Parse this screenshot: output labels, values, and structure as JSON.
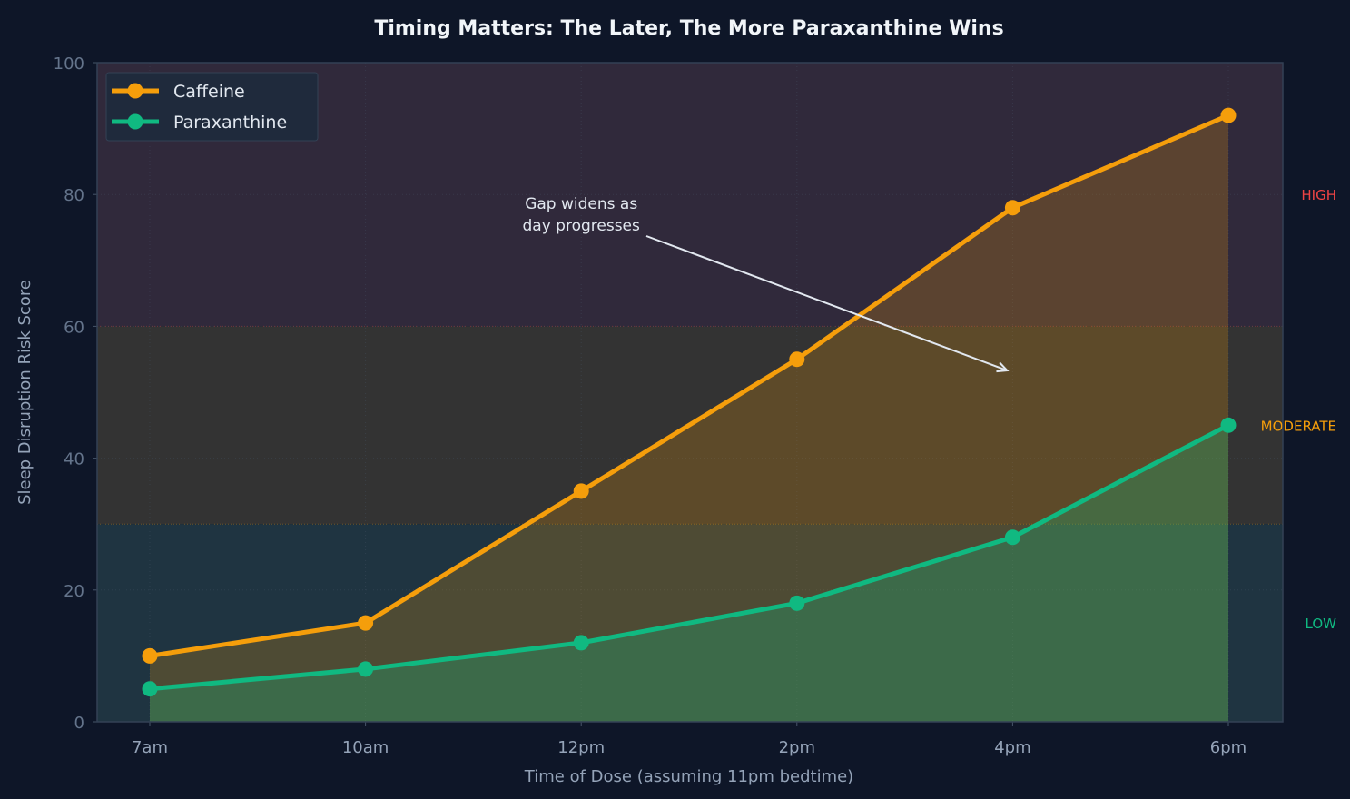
{
  "chart_data": {
    "type": "line",
    "title": "Timing Matters: The Later, The More Paraxanthine Wins",
    "xlabel": "Time of Dose (assuming 11pm bedtime)",
    "ylabel": "Sleep Disruption Risk Score",
    "categories": [
      "7am",
      "10am",
      "12pm",
      "2pm",
      "4pm",
      "6pm"
    ],
    "ylim": [
      0,
      100
    ],
    "yticks": [
      0,
      20,
      40,
      60,
      80,
      100
    ],
    "grid": true,
    "legend": "top-left",
    "series": [
      {
        "name": "Caffeine",
        "values": [
          10,
          15,
          35,
          55,
          78,
          92
        ],
        "color": "#f59e0b"
      },
      {
        "name": "Paraxanthine",
        "values": [
          5,
          8,
          12,
          18,
          28,
          45
        ],
        "color": "#10b981"
      }
    ],
    "zones": [
      {
        "label": "LOW",
        "from": 0,
        "to": 30,
        "label_y": 15,
        "color": "#10b981",
        "fill": "#1f3441"
      },
      {
        "label": "MODERATE",
        "from": 30,
        "to": 60,
        "label_y": 45,
        "color": "#f59e0b",
        "fill": "#333333"
      },
      {
        "label": "HIGH",
        "from": 60,
        "to": 100,
        "label_y": 80,
        "color": "#ef4444",
        "fill": "#30293b"
      }
    ],
    "annotation": {
      "text": [
        "Gap widens as",
        "day progresses"
      ],
      "text_at": {
        "x": 2,
        "y": 77
      },
      "arrow_to": {
        "x": 4,
        "y": 53.3
      }
    }
  }
}
